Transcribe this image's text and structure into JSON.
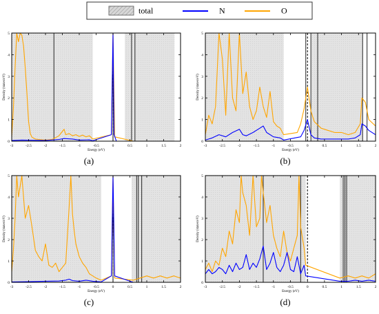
{
  "legend": {
    "items": [
      {
        "label": "total",
        "color": "#b8b8b8",
        "kind": "hatched"
      },
      {
        "label": "N",
        "color": "#0000ff",
        "kind": "line"
      },
      {
        "label": "O",
        "color": "#ffa500",
        "kind": "line"
      }
    ]
  },
  "chart_data": [
    {
      "type": "line",
      "caption": "(a)",
      "xlabel": "Energy (eV)",
      "ylabel": "Density (states/eV)",
      "xlim": [
        -3,
        2
      ],
      "ylim": [
        0,
        5
      ],
      "xticks": [
        -3,
        -2.5,
        -2,
        -1.5,
        -1,
        -0.5,
        0,
        0.5,
        1,
        1.5,
        2
      ],
      "xtick_labels": [
        "-3",
        "-2.5",
        "-2",
        "-1.5",
        "-1",
        "-0.5",
        "0",
        "0.5",
        "1",
        "1.5",
        "2"
      ],
      "yticks": [
        0,
        1,
        2,
        3,
        4,
        5
      ],
      "ytick_labels": [
        "0",
        "1",
        "2",
        "3",
        "4",
        "5"
      ],
      "fermi_level": 0,
      "total_bands": [
        [
          -3,
          -0.6
        ],
        [
          0.35,
          1.82
        ]
      ],
      "total_line_x": [
        -1.75,
        0.0,
        0.55,
        0.65
      ],
      "series": [
        {
          "name": "N",
          "color": "#0000ff",
          "x": [
            -3,
            -2.7,
            -2.4,
            -2.0,
            -1.6,
            -1.45,
            -1.2,
            -1.0,
            -0.7,
            -0.6,
            -0.05,
            0.0,
            0.03,
            0.1,
            0.6,
            1.0,
            1.4,
            1.8
          ],
          "y": [
            0.03,
            0.05,
            0.04,
            0.03,
            0.08,
            0.12,
            0.1,
            0.05,
            0.06,
            0.02,
            0.3,
            5.0,
            0.3,
            0.0,
            0.0,
            0.0,
            0.0,
            0.0
          ]
        },
        {
          "name": "O",
          "color": "#ffa500",
          "x": [
            -3,
            -2.95,
            -2.9,
            -2.85,
            -2.8,
            -2.75,
            -2.7,
            -2.65,
            -2.6,
            -2.55,
            -2.5,
            -2.45,
            -2.4,
            -2.3,
            -2.2,
            -2.0,
            -1.8,
            -1.6,
            -1.5,
            -1.45,
            -1.4,
            -1.3,
            -1.2,
            -1.1,
            -1.0,
            -0.9,
            -0.8,
            -0.7,
            -0.6,
            -0.05,
            0.0,
            0.05,
            0.6,
            1.0,
            1.4,
            1.8
          ],
          "y": [
            0.2,
            1.5,
            3.4,
            5.0,
            4.6,
            5.0,
            4.9,
            4.4,
            3.4,
            2.2,
            0.9,
            0.35,
            0.18,
            0.1,
            0.08,
            0.05,
            0.08,
            0.25,
            0.45,
            0.55,
            0.3,
            0.35,
            0.25,
            0.3,
            0.22,
            0.28,
            0.2,
            0.25,
            0.1,
            0.3,
            5.0,
            0.2,
            0.0,
            0.0,
            0.0,
            0.0
          ]
        }
      ]
    },
    {
      "type": "line",
      "caption": "(b)",
      "xlabel": "Energy (eV)",
      "ylabel": "Density (states/eV)",
      "xlim": [
        -3,
        2
      ],
      "ylim": [
        0,
        5
      ],
      "xticks": [
        -3,
        -2.5,
        -2,
        -1.5,
        -1,
        -0.5,
        0,
        0.5,
        1,
        1.5,
        2
      ],
      "xtick_labels": [
        "-3",
        "-2.5",
        "-2",
        "-1.5",
        "-1",
        "-0.5",
        "0",
        "0.5",
        "1",
        "1.5",
        "2"
      ],
      "yticks": [
        0,
        1,
        2,
        3,
        4,
        5
      ],
      "ytick_labels": [
        "0",
        "1",
        "2",
        "3",
        "4",
        "5"
      ],
      "fermi_level": 0,
      "total_bands": [
        [
          -3,
          -0.7
        ],
        [
          0.1,
          1.62
        ]
      ],
      "total_line_x": [
        -0.05,
        0.1,
        0.3,
        1.62,
        1.75
      ],
      "series": [
        {
          "name": "N",
          "color": "#0000ff",
          "x": [
            -3,
            -2.8,
            -2.6,
            -2.4,
            -2.2,
            -2.0,
            -1.9,
            -1.8,
            -1.6,
            -1.4,
            -1.3,
            -1.2,
            -1.0,
            -0.8,
            -0.7,
            -0.2,
            -0.1,
            0.0,
            0.1,
            0.2,
            0.4,
            0.6,
            0.8,
            1.0,
            1.2,
            1.4,
            1.55,
            1.6,
            1.7,
            1.8,
            2.0
          ],
          "y": [
            0.05,
            0.15,
            0.3,
            0.2,
            0.4,
            0.55,
            0.3,
            0.25,
            0.4,
            0.6,
            0.7,
            0.4,
            0.2,
            0.15,
            0.05,
            0.2,
            0.5,
            1.0,
            0.3,
            0.15,
            0.1,
            0.1,
            0.1,
            0.1,
            0.1,
            0.15,
            0.3,
            0.8,
            0.7,
            0.5,
            0.3
          ]
        },
        {
          "name": "O",
          "color": "#ffa500",
          "x": [
            -3,
            -2.9,
            -2.8,
            -2.7,
            -2.6,
            -2.5,
            -2.4,
            -2.3,
            -2.2,
            -2.1,
            -2.0,
            -1.9,
            -1.8,
            -1.7,
            -1.6,
            -1.5,
            -1.4,
            -1.3,
            -1.2,
            -1.1,
            -1.0,
            -0.9,
            -0.8,
            -0.7,
            -0.3,
            -0.2,
            -0.1,
            0.0,
            0.1,
            0.2,
            0.4,
            0.6,
            0.8,
            1.0,
            1.2,
            1.4,
            1.55,
            1.6,
            1.7,
            1.8,
            2.0
          ],
          "y": [
            0.3,
            1.2,
            0.8,
            1.6,
            5.0,
            3.8,
            1.2,
            5.0,
            2.0,
            1.4,
            5.0,
            2.2,
            3.2,
            1.6,
            1.0,
            1.4,
            2.5,
            1.6,
            1.1,
            2.3,
            0.9,
            0.7,
            0.6,
            0.3,
            0.4,
            0.8,
            1.5,
            2.5,
            1.4,
            0.9,
            0.6,
            0.5,
            0.4,
            0.4,
            0.3,
            0.4,
            0.8,
            2.0,
            1.8,
            1.0,
            0.7
          ]
        }
      ]
    },
    {
      "type": "line",
      "caption": "(c)",
      "xlabel": "Energy (eV)",
      "ylabel": "Density (states/eV)",
      "xlim": [
        -3,
        2
      ],
      "ylim": [
        0,
        5
      ],
      "xticks": [
        -3,
        -2.5,
        -2,
        -1.5,
        -1,
        -0.5,
        0,
        0.5,
        1,
        1.5,
        2
      ],
      "xtick_labels": [
        "-3",
        "-2.5",
        "-2",
        "-1.5",
        "-1",
        "-0.5",
        "0",
        "0.5",
        "1",
        "1.5",
        "2"
      ],
      "yticks": [
        0,
        1,
        2,
        3,
        4,
        5
      ],
      "ytick_labels": [
        "0",
        "1",
        "2",
        "3",
        "4",
        "5"
      ],
      "fermi_level": 0,
      "total_bands": [
        [
          -3,
          -0.35
        ],
        [
          0.55,
          2.0
        ]
      ],
      "total_line_x": [
        0.0,
        0.7,
        0.75,
        0.85
      ],
      "series": [
        {
          "name": "N",
          "color": "#0000ff",
          "x": [
            -3,
            -2.5,
            -2.0,
            -1.6,
            -1.4,
            -1.3,
            -1.2,
            -1.0,
            -0.8,
            -0.6,
            -0.35,
            -0.05,
            0.0,
            0.05,
            0.6,
            1.0,
            1.4,
            2.0
          ],
          "y": [
            0.02,
            0.03,
            0.05,
            0.06,
            0.1,
            0.15,
            0.08,
            0.05,
            0.1,
            0.05,
            0.02,
            0.3,
            5.0,
            0.3,
            0.0,
            0.0,
            0.0,
            0.0
          ]
        },
        {
          "name": "O",
          "color": "#ffa500",
          "x": [
            -3,
            -2.95,
            -2.9,
            -2.85,
            -2.8,
            -2.7,
            -2.6,
            -2.5,
            -2.4,
            -2.3,
            -2.2,
            -2.1,
            -2.0,
            -1.9,
            -1.8,
            -1.7,
            -1.6,
            -1.5,
            -1.4,
            -1.3,
            -1.25,
            -1.2,
            -1.15,
            -1.1,
            -1.0,
            -0.9,
            -0.8,
            -0.7,
            -0.6,
            -0.5,
            -0.35,
            -0.05,
            0.0,
            0.05,
            0.6,
            0.8,
            1.0,
            1.2,
            1.4,
            1.6,
            1.8,
            2.0
          ],
          "y": [
            0.5,
            1.5,
            3.0,
            5.0,
            4.0,
            5.0,
            3.0,
            3.6,
            2.6,
            1.5,
            1.2,
            1.0,
            1.8,
            0.8,
            0.7,
            0.9,
            0.5,
            0.7,
            0.9,
            3.5,
            5.0,
            3.2,
            2.4,
            1.8,
            1.2,
            0.9,
            0.7,
            0.4,
            0.3,
            0.2,
            0.1,
            0.3,
            5.0,
            0.2,
            0.1,
            0.2,
            0.3,
            0.2,
            0.3,
            0.2,
            0.3,
            0.2
          ]
        }
      ]
    },
    {
      "type": "line",
      "caption": "(d)",
      "xlabel": "Energy (eV)",
      "ylabel": "Density (states/eV)",
      "xlim": [
        -3,
        2
      ],
      "ylim": [
        0,
        5
      ],
      "xticks": [
        -3,
        -2.5,
        -2,
        -1.5,
        -1,
        -0.5,
        0,
        0.5,
        1,
        1.5,
        2
      ],
      "xtick_labels": [
        "-3",
        "-2.5",
        "-2",
        "-1.5",
        "-1",
        "-0.5",
        "0",
        "0.5",
        "1",
        "1.5",
        "2"
      ],
      "yticks": [
        0,
        1,
        2,
        3,
        4,
        5
      ],
      "ytick_labels": [
        "0",
        "1",
        "2",
        "3",
        "4",
        "5"
      ],
      "fermi_level": 0,
      "total_bands": [
        [
          -3,
          -0.05
        ],
        [
          0.95,
          2.0
        ]
      ],
      "total_line_x": [
        -1.3,
        -0.2,
        1.05,
        1.1,
        1.15
      ],
      "series": [
        {
          "name": "N",
          "color": "#0000ff",
          "x": [
            -3,
            -2.9,
            -2.8,
            -2.7,
            -2.6,
            -2.5,
            -2.4,
            -2.3,
            -2.2,
            -2.1,
            -2.0,
            -1.9,
            -1.8,
            -1.7,
            -1.6,
            -1.5,
            -1.4,
            -1.3,
            -1.2,
            -1.1,
            -1.0,
            -0.9,
            -0.8,
            -0.7,
            -0.6,
            -0.5,
            -0.4,
            -0.3,
            -0.2,
            -0.1,
            -0.05,
            0.95,
            1.2,
            1.4,
            1.6,
            1.8,
            2.0
          ],
          "y": [
            0.4,
            0.6,
            0.4,
            0.5,
            0.7,
            0.6,
            0.4,
            0.8,
            0.5,
            0.9,
            0.6,
            0.7,
            1.3,
            0.6,
            0.9,
            0.7,
            1.1,
            1.7,
            0.6,
            0.9,
            1.4,
            0.7,
            0.5,
            0.8,
            1.4,
            0.6,
            0.5,
            1.2,
            0.4,
            0.8,
            0.3,
            0.05,
            0.05,
            0.1,
            0.05,
            0.1,
            0.05
          ]
        },
        {
          "name": "O",
          "color": "#ffa500",
          "x": [
            -3,
            -2.9,
            -2.8,
            -2.7,
            -2.6,
            -2.5,
            -2.4,
            -2.3,
            -2.2,
            -2.1,
            -2.0,
            -1.95,
            -1.9,
            -1.8,
            -1.7,
            -1.6,
            -1.5,
            -1.4,
            -1.35,
            -1.3,
            -1.2,
            -1.1,
            -1.0,
            -0.9,
            -0.8,
            -0.7,
            -0.6,
            -0.5,
            -0.4,
            -0.3,
            -0.25,
            -0.2,
            -0.1,
            -0.05,
            0.95,
            1.2,
            1.4,
            1.6,
            1.8,
            2.0
          ],
          "y": [
            0.6,
            0.9,
            0.5,
            1.0,
            0.8,
            1.6,
            1.2,
            2.4,
            1.8,
            3.4,
            2.8,
            5.0,
            4.2,
            3.6,
            2.2,
            5.0,
            2.6,
            3.0,
            5.0,
            4.2,
            2.8,
            3.6,
            2.2,
            1.6,
            1.2,
            2.4,
            1.4,
            1.0,
            1.6,
            2.2,
            5.0,
            2.6,
            1.6,
            0.8,
            0.2,
            0.3,
            0.2,
            0.3,
            0.2,
            0.4
          ]
        }
      ]
    }
  ]
}
